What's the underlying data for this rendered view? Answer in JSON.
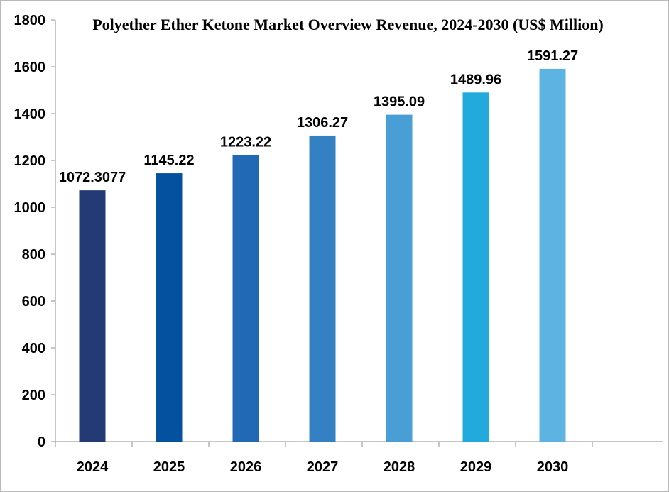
{
  "chart_data": {
    "type": "bar",
    "title": "Polyether Ether Ketone Market Overview Revenue, 2024-2030 (US$ Million)",
    "categories": [
      "2024",
      "2025",
      "2026",
      "2027",
      "2028",
      "2029",
      "2030"
    ],
    "values": [
      1072.3077,
      1145.22,
      1223.22,
      1306.27,
      1395.09,
      1489.96,
      1591.27
    ],
    "data_labels": [
      "1072.3077",
      "1145.22",
      "1223.22",
      "1306.27",
      "1395.09",
      "1489.96",
      "1591.27"
    ],
    "bar_colors": [
      "#243a74",
      "#0451a0",
      "#2169b4",
      "#3381c3",
      "#4a9ed6",
      "#22aadd",
      "#5db3e2"
    ],
    "ylim": [
      0,
      1800
    ],
    "yticks": [
      0,
      200,
      400,
      600,
      800,
      1000,
      1200,
      1400,
      1600,
      1800
    ],
    "xlabel": "",
    "ylabel": "",
    "grid": false,
    "legend": "none"
  }
}
